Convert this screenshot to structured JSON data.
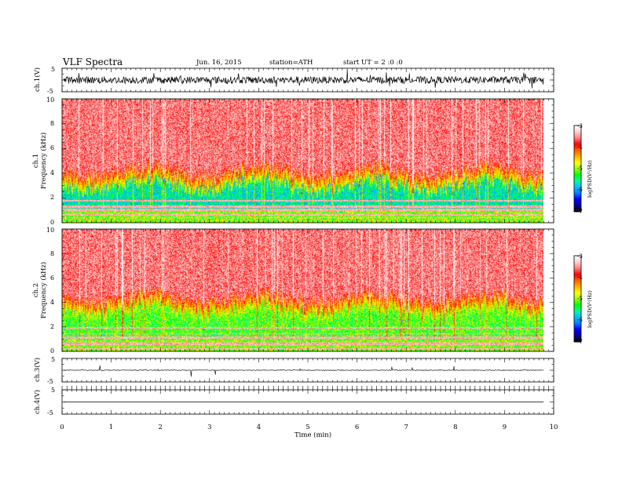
{
  "header": {
    "title": "VLF Spectra",
    "date": "Jun. 16, 2015",
    "station": "station=ATH",
    "start": "start UT = 2 :0 :0"
  },
  "chart_data": [
    {
      "type": "line",
      "ylabel": "ch.1(V)",
      "ylim": [
        -5,
        5
      ],
      "y_ticks": [
        "5",
        "-5"
      ],
      "color": "#000000",
      "baseline": 0,
      "noise_amplitude": 1.5
    },
    {
      "type": "heatmap",
      "ylabel": "ch.1\nFrequency (kHz)",
      "ylim": [
        0,
        10
      ],
      "y_ticks": [
        "0",
        "2",
        "4",
        "6",
        "8",
        "10"
      ],
      "colorbar": {
        "label": "logPSD(V²/Hz)",
        "range": [
          -7,
          -3
        ],
        "ticks": [
          "-3",
          "-4",
          "-5",
          "-6",
          "-7"
        ]
      }
    },
    {
      "type": "heatmap",
      "ylabel": "ch.2\nFrequency (kHz)",
      "ylim": [
        0,
        10
      ],
      "y_ticks": [
        "0",
        "2",
        "4",
        "6",
        "8",
        "10"
      ],
      "colorbar": {
        "label": "logPSD(V²/Hz)",
        "range": [
          -7,
          -3
        ],
        "ticks": [
          "-3",
          "-4",
          "-5",
          "-6",
          "-7"
        ]
      }
    },
    {
      "type": "line",
      "ylabel": "ch.3(V)",
      "ylim": [
        -5,
        5
      ],
      "y_ticks": [
        "5",
        "-5"
      ],
      "color": "#000000",
      "baseline": 0
    },
    {
      "type": "line",
      "ylabel": "ch.4(V)",
      "ylim": [
        -5,
        5
      ],
      "y_ticks": [
        "5",
        "-5"
      ],
      "color": "#000000",
      "baseline": 0
    }
  ],
  "x_axis": {
    "label": "Time (min)",
    "range": [
      0,
      10
    ],
    "ticks": [
      "0",
      "1",
      "2",
      "3",
      "4",
      "5",
      "6",
      "7",
      "8",
      "9",
      "10"
    ],
    "data_end": 9.8
  },
  "colormap": [
    "#000000",
    "#0000a0",
    "#0000ff",
    "#0080ff",
    "#00c0ff",
    "#00ffa0",
    "#00ff00",
    "#a0ff00",
    "#ffff00",
    "#ffb000",
    "#ff6000",
    "#ff0000",
    "#ff8080",
    "#ffd0d0",
    "#ffffff"
  ]
}
